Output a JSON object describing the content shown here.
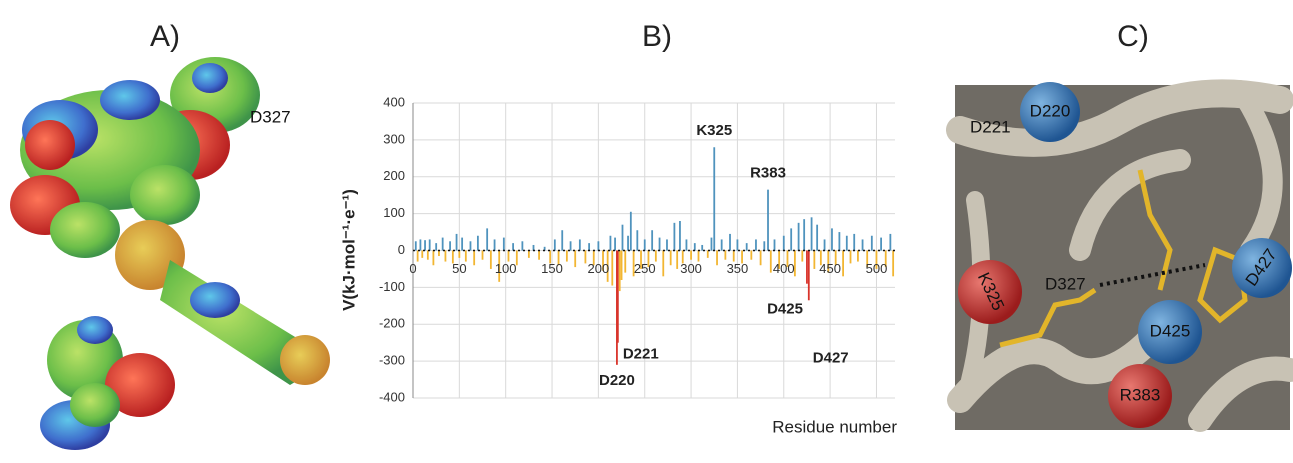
{
  "panels": {
    "a": {
      "title": "A)",
      "labels": [
        "D327"
      ]
    },
    "b": {
      "title": "B)"
    },
    "c": {
      "title": "C)",
      "labels": [
        "D221",
        "D220",
        "K325",
        "D327",
        "D427",
        "D425",
        "R383"
      ]
    }
  },
  "chart_data": {
    "type": "bar",
    "y_label": "V(kJ·mol⁻¹·e⁻¹)",
    "x_label": "Residue number",
    "x": [
      3,
      5,
      8,
      10,
      13,
      16,
      18,
      22,
      25,
      28,
      32,
      35,
      40,
      43,
      47,
      50,
      53,
      57,
      62,
      66,
      70,
      75,
      80,
      84,
      88,
      93,
      98,
      103,
      108,
      112,
      118,
      125,
      130,
      136,
      142,
      148,
      153,
      157,
      161,
      166,
      170,
      175,
      180,
      186,
      190,
      195,
      200,
      205,
      210,
      213,
      215,
      218,
      220,
      221,
      223,
      225,
      226,
      229,
      232,
      235,
      238,
      242,
      246,
      250,
      254,
      258,
      262,
      266,
      270,
      274,
      278,
      282,
      285,
      288,
      291,
      295,
      300,
      304,
      308,
      312,
      318,
      322,
      325,
      328,
      333,
      337,
      342,
      346,
      350,
      355,
      360,
      365,
      370,
      375,
      379,
      383,
      386,
      390,
      395,
      400,
      404,
      408,
      412,
      416,
      420,
      422,
      425,
      427,
      430,
      433,
      436,
      440,
      444,
      448,
      452,
      456,
      460,
      464,
      468,
      472,
      476,
      480,
      485,
      490,
      495,
      500,
      505,
      510,
      515,
      518
    ],
    "values": [
      25,
      -30,
      30,
      -20,
      28,
      -25,
      30,
      -40,
      20,
      -15,
      35,
      -30,
      25,
      -35,
      45,
      -20,
      35,
      -30,
      25,
      -40,
      40,
      -25,
      60,
      -50,
      30,
      -85,
      35,
      -30,
      20,
      -40,
      25,
      -20,
      15,
      -25,
      10,
      -35,
      30,
      -40,
      55,
      -30,
      25,
      -45,
      30,
      -35,
      20,
      -40,
      25,
      -55,
      -85,
      40,
      -95,
      35,
      -310,
      -250,
      -110,
      -80,
      70,
      -60,
      40,
      105,
      -70,
      55,
      -50,
      30,
      -45,
      55,
      -30,
      35,
      -70,
      30,
      -40,
      75,
      -50,
      80,
      -35,
      30,
      -25,
      20,
      -30,
      15,
      -20,
      35,
      280,
      -40,
      30,
      -25,
      45,
      -30,
      30,
      -35,
      20,
      -25,
      30,
      -40,
      25,
      165,
      -60,
      30,
      -50,
      40,
      -45,
      60,
      -70,
      75,
      -30,
      85,
      -90,
      -135,
      90,
      -50,
      70,
      -40,
      30,
      -60,
      60,
      -40,
      50,
      -70,
      40,
      -35,
      45,
      -30,
      30,
      -45,
      40,
      -50,
      35,
      -45,
      45,
      -70
    ],
    "color": "#4f93bd",
    "negative_color": "#f2b632",
    "annotation_color": "#d9342b",
    "annotations": [
      {
        "text": "K325",
        "x": 325
      },
      {
        "text": "R383",
        "x": 383
      },
      {
        "text": "D425",
        "x": 425
      },
      {
        "text": "D427",
        "x": 427
      },
      {
        "text": "D221",
        "x": 221
      },
      {
        "text": "D220",
        "x": 220
      }
    ],
    "xlim": [
      0,
      520
    ],
    "xticks": [
      0,
      50,
      100,
      150,
      200,
      250,
      300,
      350,
      400,
      450,
      500
    ],
    "ylim": [
      -400,
      400
    ],
    "yticks": [
      -400,
      -300,
      -200,
      -100,
      0,
      100,
      200,
      300,
      400
    ],
    "grid": true
  }
}
